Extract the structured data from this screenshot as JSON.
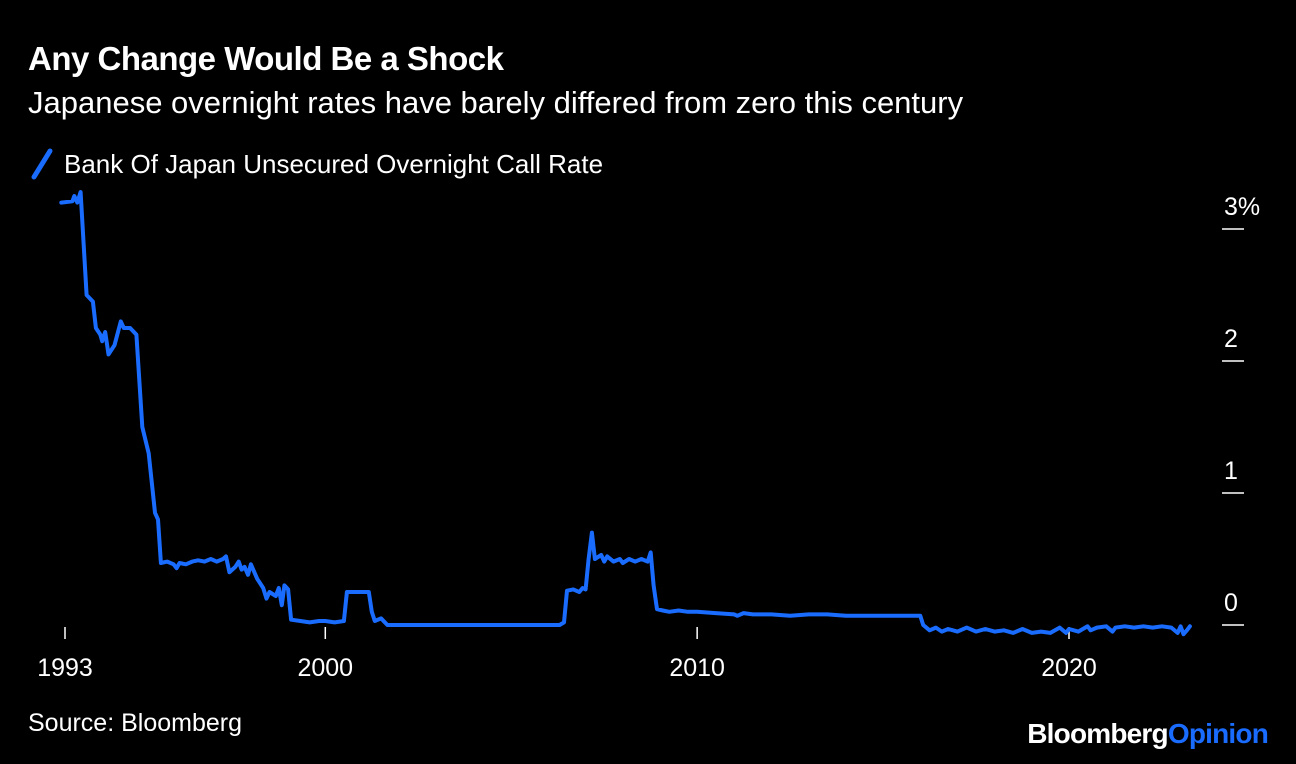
{
  "header": {
    "title": "Any Change Would Be a Shock",
    "subtitle": "Japanese overnight rates have barely differed from zero this century"
  },
  "footer": {
    "source": "Source: Bloomberg",
    "logo_part1": "Bloomberg",
    "logo_part2": "Opinion"
  },
  "colors": {
    "background": "#000000",
    "line": "#1a6cff",
    "text": "#ffffff"
  },
  "chart_data": {
    "type": "line",
    "legend": "top-left",
    "grid": false,
    "y_axis_position": "right",
    "x_ticks": [
      {
        "label": "1993",
        "value": 1993.0
      },
      {
        "label": "2000",
        "value": 2000.0
      },
      {
        "label": "2010",
        "value": 2010.0
      },
      {
        "label": "2020",
        "value": 2020.0
      }
    ],
    "y_ticks": [
      {
        "label": "0",
        "value": 0
      },
      {
        "label": "1",
        "value": 1
      },
      {
        "label": "2",
        "value": 2
      },
      {
        "label": "3%",
        "value": 3
      }
    ],
    "xlim": [
      1993.0,
      2023.5
    ],
    "ylim": [
      -0.1,
      3.3
    ],
    "series": [
      {
        "name": "Bank Of Japan Unsecured Overnight Call Rate",
        "points": [
          [
            1992.9,
            3.2
          ],
          [
            1993.2,
            3.21
          ],
          [
            1993.25,
            3.25
          ],
          [
            1993.33,
            3.2
          ],
          [
            1993.42,
            3.28
          ],
          [
            1993.58,
            2.5
          ],
          [
            1993.75,
            2.45
          ],
          [
            1993.83,
            2.25
          ],
          [
            1993.95,
            2.2
          ],
          [
            1994.0,
            2.15
          ],
          [
            1994.08,
            2.22
          ],
          [
            1994.17,
            2.05
          ],
          [
            1994.33,
            2.12
          ],
          [
            1994.5,
            2.3
          ],
          [
            1994.58,
            2.25
          ],
          [
            1994.75,
            2.25
          ],
          [
            1994.92,
            2.2
          ],
          [
            1995.08,
            1.5
          ],
          [
            1995.25,
            1.3
          ],
          [
            1995.42,
            0.85
          ],
          [
            1995.5,
            0.8
          ],
          [
            1995.58,
            0.47
          ],
          [
            1995.75,
            0.48
          ],
          [
            1995.92,
            0.46
          ],
          [
            1996.0,
            0.43
          ],
          [
            1996.08,
            0.47
          ],
          [
            1996.25,
            0.46
          ],
          [
            1996.42,
            0.48
          ],
          [
            1996.58,
            0.49
          ],
          [
            1996.75,
            0.48
          ],
          [
            1996.92,
            0.5
          ],
          [
            1997.08,
            0.48
          ],
          [
            1997.25,
            0.5
          ],
          [
            1997.33,
            0.52
          ],
          [
            1997.42,
            0.4
          ],
          [
            1997.58,
            0.44
          ],
          [
            1997.67,
            0.48
          ],
          [
            1997.75,
            0.42
          ],
          [
            1997.83,
            0.44
          ],
          [
            1997.92,
            0.38
          ],
          [
            1998.0,
            0.46
          ],
          [
            1998.17,
            0.35
          ],
          [
            1998.33,
            0.28
          ],
          [
            1998.42,
            0.2
          ],
          [
            1998.5,
            0.25
          ],
          [
            1998.67,
            0.22
          ],
          [
            1998.75,
            0.28
          ],
          [
            1998.83,
            0.15
          ],
          [
            1998.9,
            0.3
          ],
          [
            1999.0,
            0.27
          ],
          [
            1999.08,
            0.04
          ],
          [
            1999.33,
            0.03
          ],
          [
            1999.58,
            0.02
          ],
          [
            1999.83,
            0.03
          ],
          [
            2000.0,
            0.03
          ],
          [
            2000.25,
            0.02
          ],
          [
            2000.5,
            0.03
          ],
          [
            2000.58,
            0.25
          ],
          [
            2000.75,
            0.25
          ],
          [
            2001.0,
            0.25
          ],
          [
            2001.17,
            0.25
          ],
          [
            2001.25,
            0.1
          ],
          [
            2001.33,
            0.03
          ],
          [
            2001.5,
            0.05
          ],
          [
            2001.67,
            0.0
          ],
          [
            2002.5,
            0.0
          ],
          [
            2003.5,
            0.0
          ],
          [
            2004.5,
            0.0
          ],
          [
            2005.5,
            0.0
          ],
          [
            2006.3,
            0.0
          ],
          [
            2006.42,
            0.02
          ],
          [
            2006.5,
            0.26
          ],
          [
            2006.67,
            0.27
          ],
          [
            2006.83,
            0.25
          ],
          [
            2006.92,
            0.28
          ],
          [
            2007.0,
            0.27
          ],
          [
            2007.08,
            0.5
          ],
          [
            2007.17,
            0.7
          ],
          [
            2007.25,
            0.5
          ],
          [
            2007.42,
            0.53
          ],
          [
            2007.5,
            0.48
          ],
          [
            2007.58,
            0.52
          ],
          [
            2007.75,
            0.48
          ],
          [
            2007.92,
            0.5
          ],
          [
            2008.0,
            0.47
          ],
          [
            2008.17,
            0.5
          ],
          [
            2008.33,
            0.48
          ],
          [
            2008.5,
            0.5
          ],
          [
            2008.67,
            0.48
          ],
          [
            2008.75,
            0.55
          ],
          [
            2008.83,
            0.3
          ],
          [
            2008.92,
            0.12
          ],
          [
            2009.08,
            0.11
          ],
          [
            2009.25,
            0.1
          ],
          [
            2009.5,
            0.11
          ],
          [
            2009.75,
            0.1
          ],
          [
            2010.0,
            0.1
          ],
          [
            2010.5,
            0.09
          ],
          [
            2011.0,
            0.08
          ],
          [
            2011.08,
            0.07
          ],
          [
            2011.25,
            0.09
          ],
          [
            2011.5,
            0.08
          ],
          [
            2012.0,
            0.08
          ],
          [
            2012.5,
            0.07
          ],
          [
            2013.0,
            0.08
          ],
          [
            2013.5,
            0.08
          ],
          [
            2014.0,
            0.07
          ],
          [
            2014.5,
            0.07
          ],
          [
            2015.0,
            0.07
          ],
          [
            2015.5,
            0.07
          ],
          [
            2016.0,
            0.07
          ],
          [
            2016.08,
            0.0
          ],
          [
            2016.25,
            -0.04
          ],
          [
            2016.42,
            -0.02
          ],
          [
            2016.58,
            -0.05
          ],
          [
            2016.75,
            -0.03
          ],
          [
            2017.0,
            -0.05
          ],
          [
            2017.25,
            -0.02
          ],
          [
            2017.5,
            -0.05
          ],
          [
            2017.75,
            -0.03
          ],
          [
            2018.0,
            -0.05
          ],
          [
            2018.25,
            -0.04
          ],
          [
            2018.5,
            -0.06
          ],
          [
            2018.75,
            -0.03
          ],
          [
            2019.0,
            -0.06
          ],
          [
            2019.25,
            -0.05
          ],
          [
            2019.5,
            -0.06
          ],
          [
            2019.75,
            -0.02
          ],
          [
            2019.92,
            -0.06
          ],
          [
            2020.0,
            -0.03
          ],
          [
            2020.25,
            -0.05
          ],
          [
            2020.5,
            -0.01
          ],
          [
            2020.58,
            -0.04
          ],
          [
            2020.75,
            -0.02
          ],
          [
            2021.0,
            -0.01
          ],
          [
            2021.17,
            -0.05
          ],
          [
            2021.25,
            -0.02
          ],
          [
            2021.5,
            -0.01
          ],
          [
            2021.75,
            -0.02
          ],
          [
            2022.0,
            -0.01
          ],
          [
            2022.25,
            -0.02
          ],
          [
            2022.5,
            -0.01
          ],
          [
            2022.75,
            -0.02
          ],
          [
            2022.92,
            -0.06
          ],
          [
            2023.0,
            -0.01
          ],
          [
            2023.08,
            -0.07
          ],
          [
            2023.17,
            -0.04
          ],
          [
            2023.25,
            -0.01
          ]
        ]
      }
    ]
  }
}
